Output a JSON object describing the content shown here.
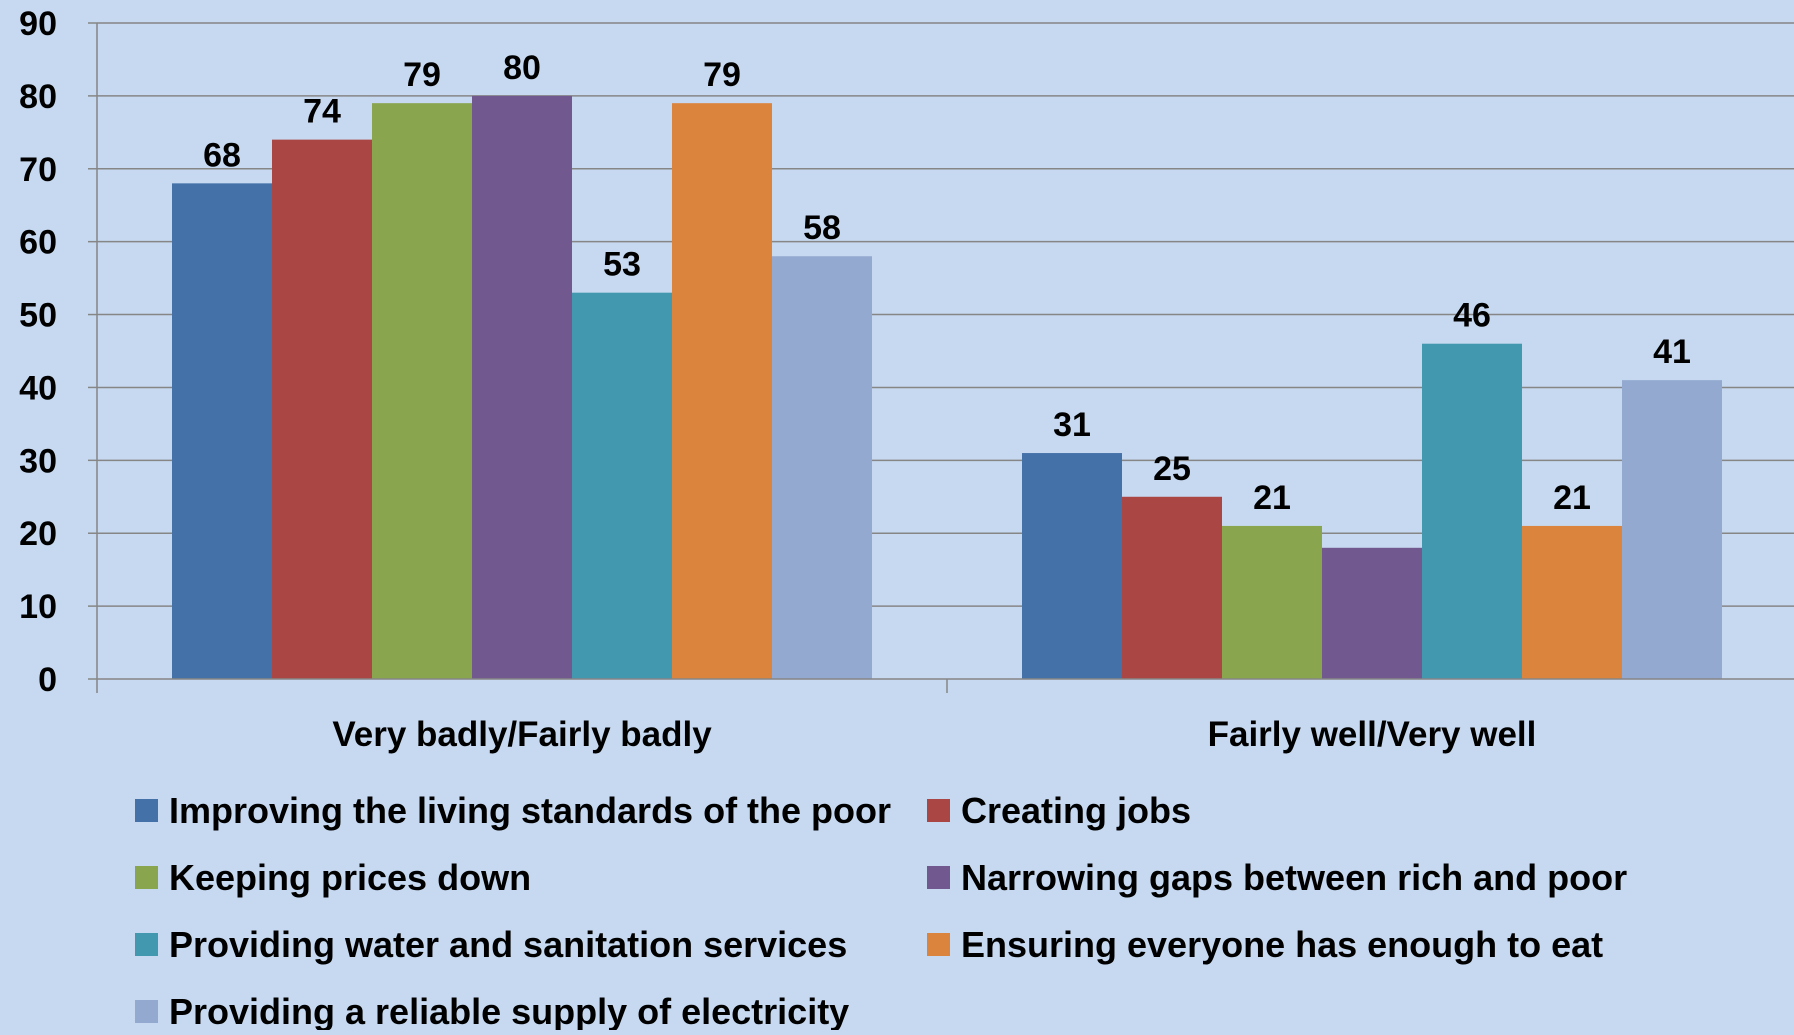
{
  "chart_data": {
    "type": "bar",
    "categories": [
      "Very badly/Fairly badly",
      "Fairly well/Very well"
    ],
    "series": [
      {
        "name": "Improving the living standards of the poor",
        "values": [
          68,
          31
        ],
        "labels": [
          "68",
          "31"
        ],
        "color": "#4472a8"
      },
      {
        "name": "Creating jobs",
        "values": [
          74,
          25
        ],
        "labels": [
          "74",
          "25"
        ],
        "color": "#aa4643"
      },
      {
        "name": "Keeping prices down",
        "values": [
          79,
          21
        ],
        "labels": [
          "79",
          "21"
        ],
        "color": "#89a54e"
      },
      {
        "name": "Narrowing gaps between rich and poor",
        "values": [
          80,
          18
        ],
        "labels": [
          "80",
          ""
        ],
        "color": "#71588f"
      },
      {
        "name": "Providing water and sanitation services",
        "values": [
          53,
          46
        ],
        "labels": [
          "53",
          "46"
        ],
        "color": "#4198af"
      },
      {
        "name": "Ensuring everyone has enough to eat",
        "values": [
          79,
          21
        ],
        "labels": [
          "79",
          "21"
        ],
        "color": "#db843d"
      },
      {
        "name": "Providing a reliable supply of electricity",
        "values": [
          58,
          41
        ],
        "labels": [
          "58",
          "41"
        ],
        "color": "#93a9cf"
      }
    ],
    "ylim": [
      0,
      90
    ],
    "yticks": [
      "0",
      "10",
      "20",
      "30",
      "40",
      "50",
      "60",
      "70",
      "80",
      "90"
    ],
    "grid": true,
    "legend_position": "bottom",
    "colors": {
      "background": "#c6d9f0",
      "gridline": "#868686"
    }
  }
}
